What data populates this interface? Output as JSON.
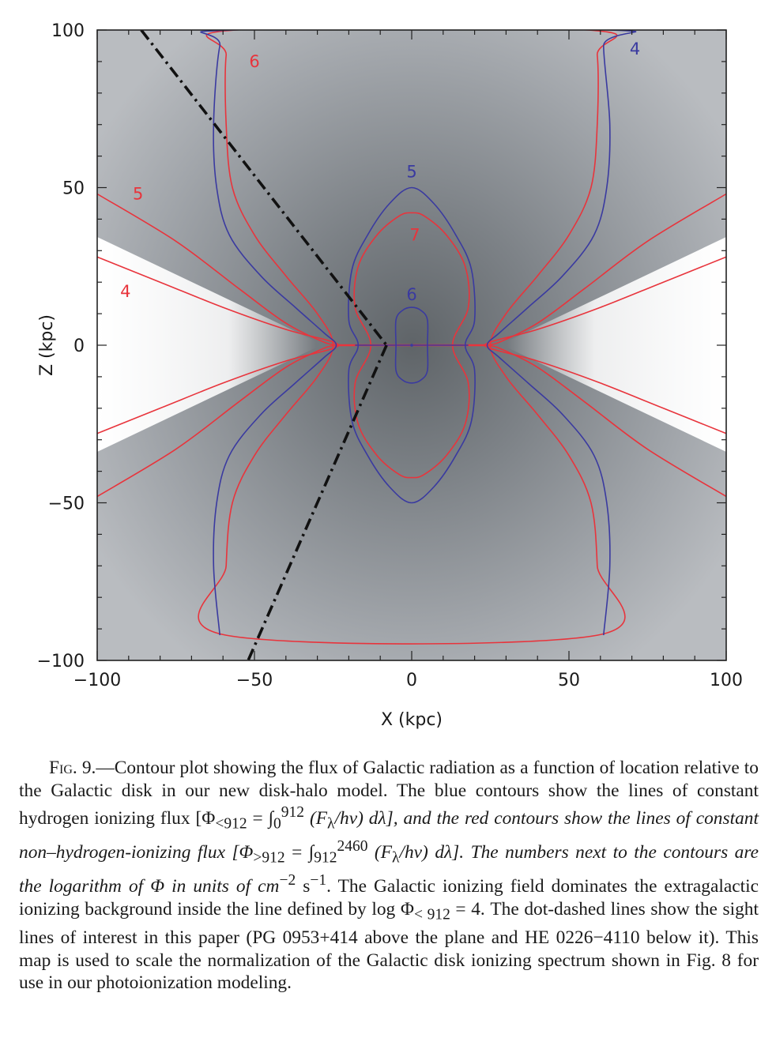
{
  "figure": {
    "chart_data": {
      "type": "contour",
      "xlabel": "X (kpc)",
      "ylabel": "Z (kpc)",
      "xlim": [
        -100,
        100
      ],
      "ylim": [
        -100,
        100
      ],
      "xticks": [
        -100,
        -50,
        0,
        50,
        100
      ],
      "yticks": [
        -100,
        -50,
        0,
        50,
        100
      ],
      "xtick_labels": [
        "−100",
        "−50",
        "0",
        "50",
        "100"
      ],
      "ytick_labels": [
        "−100",
        "−50",
        "0",
        "50",
        "100"
      ],
      "colors": {
        "blue": "#3a3aa0",
        "red": "#e8343c",
        "sightline": "#111111"
      },
      "blue_contours": [
        {
          "label": "4",
          "label_pos": [
            71,
            94
          ],
          "points": [
            [
              -61,
              -92
            ],
            [
              -63,
              -70
            ],
            [
              -62,
              -50
            ],
            [
              -58,
              -35
            ],
            [
              -48,
              -22
            ],
            [
              -37,
              -12
            ],
            [
              -28,
              -4
            ],
            [
              -24,
              0
            ],
            [
              -28,
              4
            ],
            [
              -37,
              12
            ],
            [
              -48,
              22
            ],
            [
              -58,
              35
            ],
            [
              -62,
              50
            ],
            [
              -63,
              70
            ],
            [
              -61,
              95
            ],
            [
              -57,
              100
            ],
            [
              63,
              100
            ],
            [
              61,
              95
            ],
            [
              63,
              70
            ],
            [
              62,
              50
            ],
            [
              58,
              35
            ],
            [
              48,
              22
            ],
            [
              37,
              12
            ],
            [
              28,
              4
            ],
            [
              24,
              0
            ],
            [
              28,
              -4
            ],
            [
              37,
              -12
            ],
            [
              48,
              -22
            ],
            [
              58,
              -35
            ],
            [
              62,
              -50
            ],
            [
              63,
              -70
            ],
            [
              61,
              -92
            ]
          ]
        },
        {
          "label": "5",
          "label_pos": [
            0,
            55
          ],
          "points": [
            [
              -17,
              0
            ],
            [
              -20,
              8
            ],
            [
              -19,
              24
            ],
            [
              -14,
              35
            ],
            [
              -7,
              45
            ],
            [
              0,
              50
            ],
            [
              7,
              45
            ],
            [
              14,
              35
            ],
            [
              19,
              24
            ],
            [
              20,
              8
            ],
            [
              17,
              0
            ],
            [
              20,
              -8
            ],
            [
              19,
              -24
            ],
            [
              14,
              -35
            ],
            [
              7,
              -45
            ],
            [
              0,
              -50
            ],
            [
              -7,
              -45
            ],
            [
              -14,
              -35
            ],
            [
              -19,
              -24
            ],
            [
              -20,
              -8
            ]
          ]
        },
        {
          "label": "6",
          "label_pos": [
            0,
            16
          ],
          "points": [
            [
              -5,
              0
            ],
            [
              -5,
              8
            ],
            [
              -3,
              11
            ],
            [
              0,
              12
            ],
            [
              3,
              11
            ],
            [
              5,
              8
            ],
            [
              5,
              0
            ],
            [
              5,
              -8
            ],
            [
              3,
              -11
            ],
            [
              0,
              -12
            ],
            [
              -3,
              -11
            ],
            [
              -5,
              -8
            ]
          ]
        }
      ],
      "red_contours": [
        {
          "label": "6",
          "label_pos": [
            -50,
            90
          ],
          "points": [
            [
              -59,
              -92
            ],
            [
              -59,
              -70
            ],
            [
              -57,
              -50
            ],
            [
              -50,
              -35
            ],
            [
              -40,
              -22
            ],
            [
              -30,
              -10
            ],
            [
              -25,
              0
            ],
            [
              -30,
              10
            ],
            [
              -40,
              22
            ],
            [
              -50,
              35
            ],
            [
              -57,
              50
            ],
            [
              -59,
              70
            ],
            [
              -59,
              92
            ],
            [
              -56,
              100
            ],
            [
              56,
              100
            ],
            [
              59,
              92
            ],
            [
              59,
              70
            ],
            [
              57,
              50
            ],
            [
              50,
              35
            ],
            [
              40,
              22
            ],
            [
              30,
              10
            ],
            [
              25,
              0
            ],
            [
              30,
              -10
            ],
            [
              40,
              -22
            ],
            [
              50,
              -35
            ],
            [
              57,
              -50
            ],
            [
              59,
              -70
            ],
            [
              59,
              -92
            ]
          ]
        },
        {
          "label": "7",
          "label_pos": [
            1,
            35
          ],
          "points": [
            [
              -13,
              0
            ],
            [
              -18,
              12
            ],
            [
              -17,
              25
            ],
            [
              -11,
              35
            ],
            [
              -4,
              41
            ],
            [
              0,
              42
            ],
            [
              4,
              41
            ],
            [
              11,
              35
            ],
            [
              17,
              25
            ],
            [
              18,
              12
            ],
            [
              13,
              0
            ],
            [
              18,
              -12
            ],
            [
              17,
              -25
            ],
            [
              11,
              -35
            ],
            [
              4,
              -41
            ],
            [
              0,
              -42
            ],
            [
              -4,
              -41
            ],
            [
              -11,
              -35
            ],
            [
              -17,
              -25
            ],
            [
              -18,
              -12
            ]
          ]
        },
        {
          "label": "5",
          "label_pos": [
            -87,
            48
          ],
          "points": [
            [
              -100,
              48
            ],
            [
              -75,
              33
            ],
            [
              -55,
              18
            ],
            [
              -40,
              7
            ],
            [
              -28,
              1
            ],
            [
              -24,
              0
            ],
            [
              -28,
              -1
            ],
            [
              -40,
              -7
            ],
            [
              -55,
              -18
            ],
            [
              -75,
              -33
            ],
            [
              -100,
              -48
            ]
          ]
        },
        {
          "label": "5",
          "label_pos": null,
          "points": [
            [
              100,
              48
            ],
            [
              75,
              33
            ],
            [
              55,
              18
            ],
            [
              40,
              7
            ],
            [
              28,
              1
            ],
            [
              24,
              0
            ],
            [
              28,
              -1
            ],
            [
              40,
              -7
            ],
            [
              55,
              -18
            ],
            [
              75,
              -33
            ],
            [
              100,
              -48
            ]
          ]
        },
        {
          "label": "4",
          "label_pos": [
            -91,
            17
          ],
          "points": [
            [
              -100,
              28
            ],
            [
              -80,
              20
            ],
            [
              -60,
              12
            ],
            [
              -40,
              5
            ],
            [
              -25,
              1
            ],
            [
              -25,
              -1
            ],
            [
              -40,
              -5
            ],
            [
              -60,
              -12
            ],
            [
              -80,
              -20
            ],
            [
              -100,
              -28
            ]
          ]
        },
        {
          "label": "4",
          "label_pos": null,
          "points": [
            [
              100,
              28
            ],
            [
              80,
              20
            ],
            [
              60,
              12
            ],
            [
              40,
              5
            ],
            [
              25,
              1
            ],
            [
              25,
              -1
            ],
            [
              40,
              -5
            ],
            [
              60,
              -12
            ],
            [
              80,
              -20
            ],
            [
              100,
              -28
            ]
          ]
        }
      ],
      "sightlines": [
        {
          "name": "PG 0953+414",
          "points": [
            [
              -86,
              100
            ],
            [
              -8,
              0
            ]
          ]
        },
        {
          "name": "HE 0226−4110",
          "points": [
            [
              -8,
              0
            ],
            [
              -52,
              -100
            ]
          ]
        }
      ]
    }
  },
  "caption": {
    "fig_label": "Fig.",
    "fig_number": " 9.",
    "body_1": "—Contour plot showing the flux of Galactic radiation as a function of location relative to the Galactic disk in our new disk-halo model. The blue contours show the lines of constant hydrogen ionizing flux [Φ",
    "sub_1": "<912",
    "body_2": " = ∫",
    "sub_2": "0",
    "sup_2": "912",
    "body_3": " (F",
    "sub_3": "λ",
    "body_4": "/hν) dλ], and the red contours show the lines of constant non–hydrogen-ionizing flux [Φ",
    "sub_4": ">912",
    "body_5": " = ∫",
    "sub_5": "912",
    "sup_5": "2460",
    "body_6": " (F",
    "sub_6": "λ",
    "body_7": "/hν) dλ]. The numbers next to the contours are the logarithm of Φ in units of cm",
    "sup_7": "−2",
    "body_8": " s",
    "sup_8": "−1",
    "body_9": ". The Galactic ionizing field dominates the extragalactic ionizing background inside the line defined by log Φ",
    "sub_9": "< 912",
    "body_10": " = 4. The dot-dashed lines show the sight lines of interest in this paper (PG 0953+414 above the plane and HE 0226−4110 below it). This map is used to scale the normalization of the Galactic disk ionizing spectrum shown in Fig. 8 for use in our photoionization modeling."
  }
}
